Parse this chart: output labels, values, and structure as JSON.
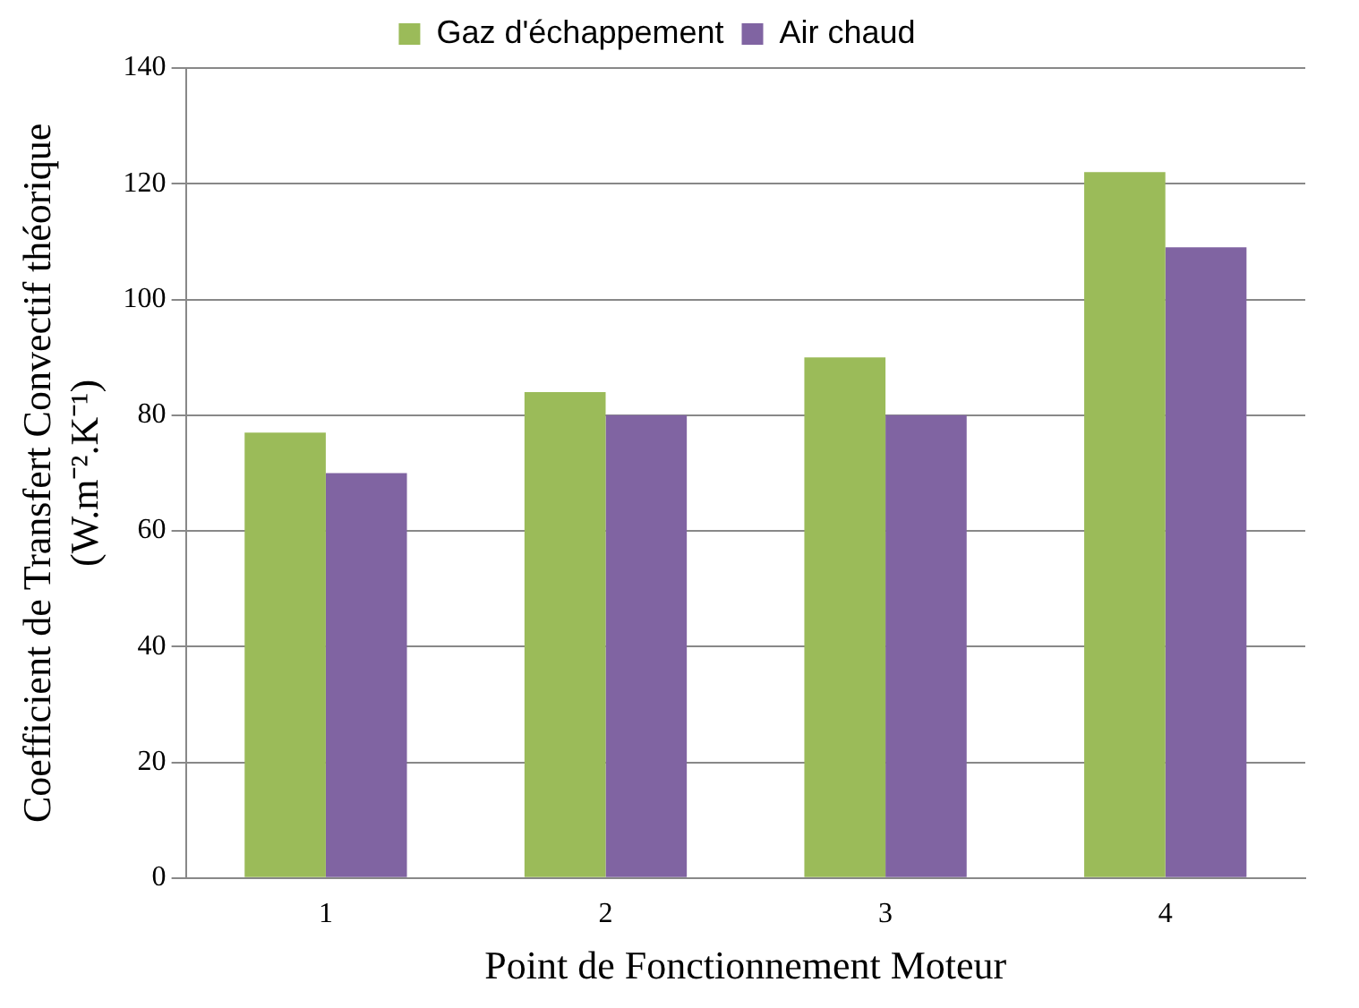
{
  "chart_data": {
    "type": "bar",
    "xlabel": "Point de Fonctionnement Moteur",
    "ylabel": "Coefficient de Transfert Convectif théorique (W.m⁻².K⁻¹)",
    "categories": [
      "1",
      "2",
      "3",
      "4"
    ],
    "series": [
      {
        "name": "Gaz d'échappement",
        "color": "#9bbb59",
        "values": [
          77,
          84,
          90,
          122
        ]
      },
      {
        "name": "Air chaud",
        "color": "#8064a2",
        "values": [
          70,
          80,
          80,
          109
        ]
      }
    ],
    "ylim": [
      0,
      140
    ],
    "yticks": [
      0,
      20,
      40,
      60,
      80,
      100,
      120,
      140
    ],
    "grid": "y",
    "legend": "top"
  }
}
